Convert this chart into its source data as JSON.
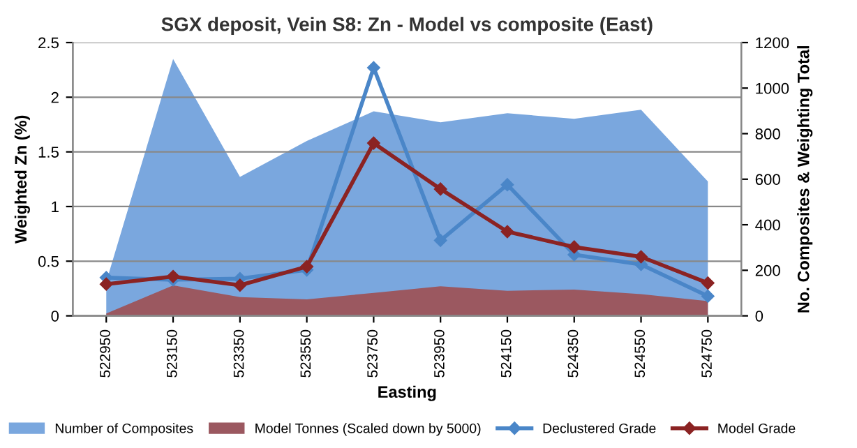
{
  "chart_data": {
    "type": "area",
    "title": "SGX deposit, Vein S8: Zn - Model vs composite (East)",
    "xlabel": "Easting",
    "ylabel": "Weighted Zn (%)",
    "y2label": "No. Composites & Weighting Total",
    "categories": [
      "522950",
      "523150",
      "523350",
      "523550",
      "523750",
      "523950",
      "524150",
      "524350",
      "524550",
      "524750"
    ],
    "series": [
      {
        "name": "Number of Composites",
        "axis": "y2",
        "color": "#7aa7de",
        "values": [
          150,
          1128,
          610,
          768,
          898,
          850,
          890,
          865,
          905,
          590
        ]
      },
      {
        "name": "Model Tonnes (Scaled down by 5000)",
        "axis": "y2",
        "color": "#9b5860",
        "values": [
          10,
          134,
          82,
          72,
          101,
          130,
          110,
          115,
          95,
          65
        ]
      },
      {
        "name": "Declustered Grade",
        "type": "line",
        "marker": "diamond",
        "color": "#4a86c8",
        "values": [
          0.35,
          0.33,
          0.34,
          0.42,
          2.27,
          0.69,
          1.2,
          0.56,
          0.47,
          0.18
        ]
      },
      {
        "name": "Model Grade",
        "type": "line",
        "marker": "diamond",
        "color": "#8b2323",
        "values": [
          0.29,
          0.36,
          0.28,
          0.45,
          1.58,
          1.16,
          0.77,
          0.63,
          0.54,
          0.3
        ]
      }
    ],
    "ylim": [
      0,
      2.5
    ],
    "yticks": [
      0,
      0.5,
      1,
      1.5,
      2,
      2.5
    ],
    "y2lim": [
      0,
      1200
    ],
    "y2ticks": [
      0,
      200,
      400,
      600,
      800,
      1000,
      1200
    ],
    "grid": "y",
    "legend": "bottom",
    "line_style": "solid"
  }
}
